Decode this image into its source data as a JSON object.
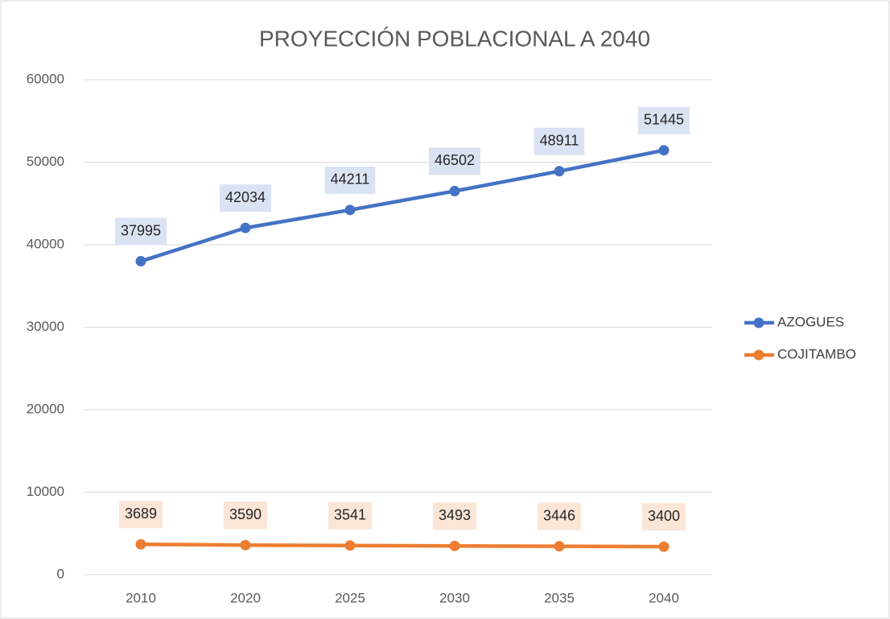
{
  "chart_data": {
    "type": "line",
    "title": "PROYECCIÓN POBLACIONAL A 2040",
    "categories": [
      "2010",
      "2020",
      "2025",
      "2030",
      "2035",
      "2040"
    ],
    "series": [
      {
        "name": "AZOGUES",
        "color": "#4472c4",
        "label_bg": "#dae3f3",
        "values": [
          37995,
          42034,
          44211,
          46502,
          48911,
          51445
        ]
      },
      {
        "name": "COJITAMBO",
        "color": "#ed7d31",
        "label_bg": "#fbe5d6",
        "values": [
          3689,
          3590,
          3541,
          3493,
          3446,
          3400
        ]
      }
    ],
    "ylim": [
      0,
      60000
    ],
    "yticks": [
      0,
      10000,
      20000,
      30000,
      40000,
      50000,
      60000
    ],
    "grid": true,
    "legend": "right"
  }
}
